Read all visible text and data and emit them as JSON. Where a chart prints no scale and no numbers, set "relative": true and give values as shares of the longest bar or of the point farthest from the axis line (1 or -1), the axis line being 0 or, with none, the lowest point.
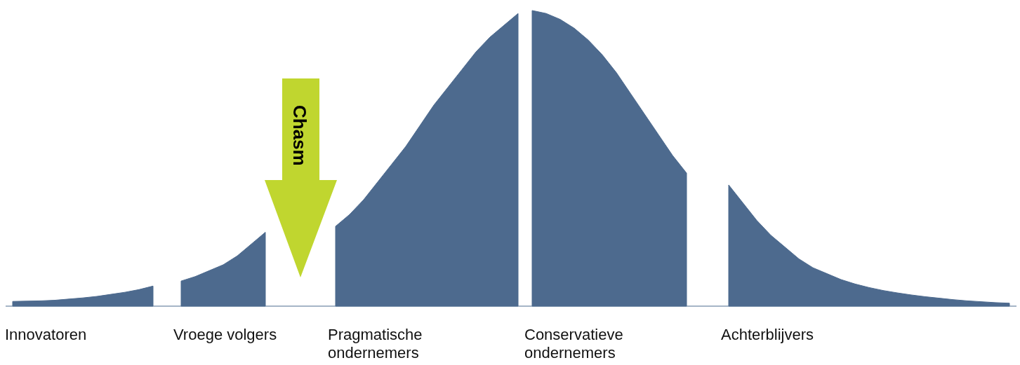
{
  "chart_data": {
    "type": "area",
    "relative": true,
    "categories": [
      null,
      null,
      null,
      null,
      null,
      null,
      null,
      null,
      null,
      null,
      null,
      null,
      null,
      null,
      null,
      null,
      null,
      null,
      null,
      null,
      null,
      null,
      null,
      null,
      null,
      null,
      null,
      null,
      null,
      null,
      null,
      null,
      null,
      null,
      null,
      null,
      null,
      null,
      null,
      null,
      null,
      null,
      null,
      null,
      null,
      null,
      null,
      null,
      null,
      null,
      null,
      null,
      null,
      null,
      null,
      null,
      null,
      null,
      null,
      null,
      null,
      null,
      null,
      null,
      null,
      null,
      null,
      null,
      null,
      null,
      null,
      null
    ],
    "series": [
      {
        "name": "Innovatoren",
        "color": "#4d6a8e",
        "values": [
          0.016,
          0.017,
          0.018,
          0.02,
          0.024,
          0.028,
          0.033,
          0.04,
          0.047,
          0.056,
          0.068,
          null,
          null,
          null,
          null,
          null,
          null,
          null,
          null,
          null,
          null,
          null,
          null,
          null,
          null,
          null,
          null,
          null,
          null,
          null,
          null,
          null,
          null,
          null,
          null,
          null,
          null,
          null,
          null,
          null,
          null,
          null,
          null,
          null,
          null,
          null,
          null,
          null,
          null,
          null,
          null,
          null,
          null,
          null,
          null,
          null,
          null,
          null,
          null,
          null,
          null,
          null,
          null,
          null,
          null,
          null,
          null,
          null,
          null,
          null,
          null,
          null
        ]
      },
      {
        "name": "Vroege volgers",
        "color": "#4d6a8e",
        "values": [
          null,
          null,
          null,
          null,
          null,
          null,
          null,
          null,
          null,
          null,
          null,
          null,
          0.085,
          0.1,
          0.12,
          0.14,
          0.17,
          0.21,
          0.25,
          null,
          null,
          null,
          null,
          null,
          null,
          null,
          null,
          null,
          null,
          null,
          null,
          null,
          null,
          null,
          null,
          null,
          null,
          null,
          null,
          null,
          null,
          null,
          null,
          null,
          null,
          null,
          null,
          null,
          null,
          null,
          null,
          null,
          null,
          null,
          null,
          null,
          null,
          null,
          null,
          null,
          null,
          null,
          null,
          null,
          null,
          null,
          null,
          null,
          null,
          null,
          null,
          null
        ]
      },
      {
        "name": "Pragmatische ondernemers",
        "color": "#4d6a8e",
        "values": [
          null,
          null,
          null,
          null,
          null,
          null,
          null,
          null,
          null,
          null,
          null,
          null,
          null,
          null,
          null,
          null,
          null,
          null,
          null,
          null,
          null,
          null,
          null,
          0.27,
          0.31,
          0.36,
          0.42,
          0.48,
          0.54,
          0.61,
          0.68,
          0.74,
          0.8,
          0.86,
          0.91,
          0.95,
          0.99,
          null,
          null,
          null,
          null,
          null,
          null,
          null,
          null,
          null,
          null,
          null,
          null,
          null,
          null,
          null,
          null,
          null,
          null,
          null,
          null,
          null,
          null,
          null,
          null,
          null,
          null,
          null,
          null,
          null,
          null,
          null,
          null,
          null,
          null,
          null
        ]
      },
      {
        "name": "Conservatieve ondernemers",
        "color": "#4d6a8e",
        "values": [
          null,
          null,
          null,
          null,
          null,
          null,
          null,
          null,
          null,
          null,
          null,
          null,
          null,
          null,
          null,
          null,
          null,
          null,
          null,
          null,
          null,
          null,
          null,
          null,
          null,
          null,
          null,
          null,
          null,
          null,
          null,
          null,
          null,
          null,
          null,
          null,
          null,
          1,
          0.99,
          0.97,
          0.94,
          0.9,
          0.85,
          0.79,
          0.72,
          0.65,
          0.58,
          0.51,
          0.45,
          null,
          null,
          null,
          null,
          null,
          null,
          null,
          null,
          null,
          null,
          null,
          null,
          null,
          null,
          null,
          null,
          null,
          null,
          null,
          null,
          null,
          null,
          null
        ]
      },
      {
        "name": "Achterblijvers",
        "color": "#4d6a8e",
        "values": [
          null,
          null,
          null,
          null,
          null,
          null,
          null,
          null,
          null,
          null,
          null,
          null,
          null,
          null,
          null,
          null,
          null,
          null,
          null,
          null,
          null,
          null,
          null,
          null,
          null,
          null,
          null,
          null,
          null,
          null,
          null,
          null,
          null,
          null,
          null,
          null,
          null,
          null,
          null,
          null,
          null,
          null,
          null,
          null,
          null,
          null,
          null,
          null,
          null,
          null,
          null,
          0.41,
          0.35,
          0.29,
          0.24,
          0.2,
          0.16,
          0.13,
          0.11,
          0.09,
          0.075,
          0.063,
          0.053,
          0.045,
          0.038,
          0.032,
          0.027,
          0.022,
          0.018,
          0.015,
          0.012,
          0.01
        ]
      }
    ],
    "annotations": [
      "Chasm"
    ]
  }
}
